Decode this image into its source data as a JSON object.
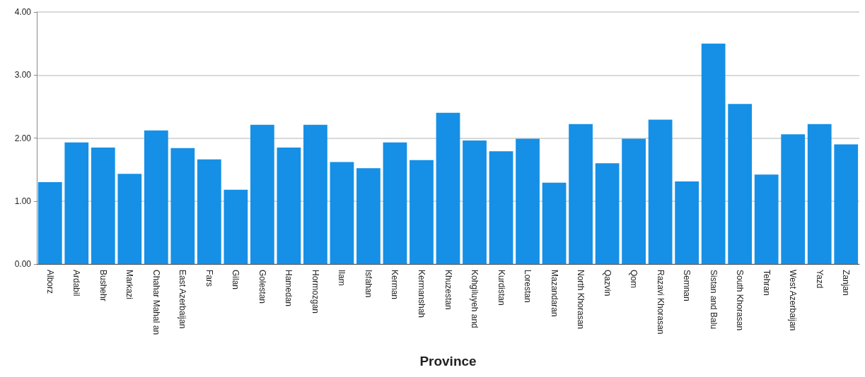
{
  "chart_data": {
    "type": "bar",
    "xlabel": "Province",
    "categories": [
      "Alborz",
      "Ardabil",
      "Bushehr",
      "Markazi",
      "Chahar Mahal an",
      "East Azerbaijan",
      "Fars",
      "Gilan",
      "Golestan",
      "Hamedan",
      "Hormozgan",
      "Ilam",
      "Isfahan",
      "Kerman",
      "Kermanshah",
      "Khuzestan",
      "Kohgiluyeh and",
      "Kurdistan",
      "Lorestan",
      "Mazandaran",
      "North Khorasan",
      "Qazvin",
      "Qom",
      "Razavi Khorasan",
      "Semnan",
      "Sistan and Balu",
      "South Khorasan",
      "Tehran",
      "West Azerbaijan",
      "Yazd",
      "Zanjan"
    ],
    "values": [
      1.3,
      1.93,
      1.85,
      1.43,
      2.12,
      1.84,
      1.66,
      1.18,
      2.21,
      1.85,
      2.21,
      1.62,
      1.52,
      1.93,
      1.65,
      2.4,
      1.96,
      1.79,
      1.99,
      1.29,
      2.22,
      1.6,
      1.99,
      2.29,
      1.31,
      3.5,
      2.54,
      1.42,
      2.06,
      2.22,
      1.9
    ],
    "color": "#1590e6",
    "ylim": [
      0,
      4
    ],
    "yticks": [
      {
        "value": 0,
        "label": "0.00"
      },
      {
        "value": 1,
        "label": "1.00"
      },
      {
        "value": 2,
        "label": "2.00"
      },
      {
        "value": 3,
        "label": "3.00"
      },
      {
        "value": 4,
        "label": "4.00"
      }
    ],
    "grid": "y"
  }
}
